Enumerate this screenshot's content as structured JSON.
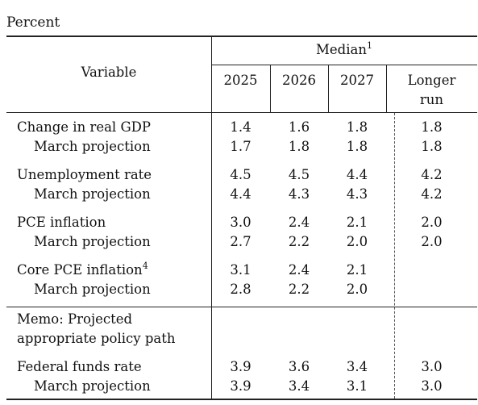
{
  "unit_label": "Percent",
  "header": {
    "variable": "Variable",
    "median": "Median",
    "median_note": "1",
    "years": [
      "2025",
      "2026",
      "2027"
    ],
    "longer_run_line1": "Longer",
    "longer_run_line2": "run"
  },
  "rows": [
    {
      "label": "Change in real GDP",
      "note": "",
      "values": [
        "1.4",
        "1.6",
        "1.8",
        "1.8"
      ]
    },
    {
      "label": "March projection",
      "note": "",
      "values": [
        "1.7",
        "1.8",
        "1.8",
        "1.8"
      ]
    },
    {
      "label": "Unemployment rate",
      "note": "",
      "values": [
        "4.5",
        "4.5",
        "4.4",
        "4.2"
      ]
    },
    {
      "label": "March projection",
      "note": "",
      "values": [
        "4.4",
        "4.3",
        "4.3",
        "4.2"
      ]
    },
    {
      "label": "PCE inflation",
      "note": "",
      "values": [
        "3.0",
        "2.4",
        "2.1",
        "2.0"
      ]
    },
    {
      "label": "March projection",
      "note": "",
      "values": [
        "2.7",
        "2.2",
        "2.0",
        "2.0"
      ]
    },
    {
      "label": "Core PCE inflation",
      "note": "4",
      "values": [
        "3.1",
        "2.4",
        "2.1",
        ""
      ]
    },
    {
      "label": "March projection",
      "note": "",
      "values": [
        "2.8",
        "2.2",
        "2.0",
        ""
      ]
    }
  ],
  "memo": {
    "line1": "Memo: Projected",
    "line2": "appropriate policy path"
  },
  "memo_rows": [
    {
      "label": "Federal funds rate",
      "values": [
        "3.9",
        "3.6",
        "3.4",
        "3.0"
      ]
    },
    {
      "label": "March projection",
      "values": [
        "3.9",
        "3.4",
        "3.1",
        "3.0"
      ]
    }
  ]
}
